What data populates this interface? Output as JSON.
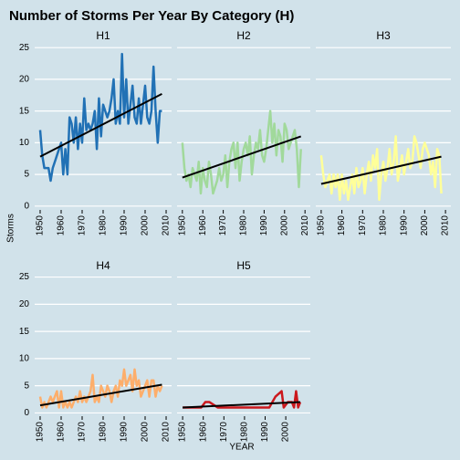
{
  "chart_data": {
    "type": "line",
    "title": "Number of Storms Per Year By Category (H)",
    "x_label": "YEAR",
    "y_label": "Storms",
    "ylim": [
      -0.6,
      25.6
    ],
    "yticks": [
      0,
      5,
      10,
      15,
      20,
      25
    ],
    "grid": true,
    "x": [
      1950,
      1951,
      1952,
      1953,
      1954,
      1955,
      1956,
      1957,
      1958,
      1959,
      1960,
      1961,
      1962,
      1963,
      1964,
      1965,
      1966,
      1967,
      1968,
      1969,
      1970,
      1971,
      1972,
      1973,
      1974,
      1975,
      1976,
      1977,
      1978,
      1979,
      1980,
      1981,
      1982,
      1983,
      1984,
      1985,
      1986,
      1987,
      1988,
      1989,
      1990,
      1991,
      1992,
      1993,
      1994,
      1995,
      1996,
      1997,
      1998,
      1999,
      2000,
      2001,
      2002,
      2003,
      2004,
      2005,
      2006,
      2007,
      2008
    ],
    "series": [
      {
        "name": "H1",
        "color": "#2171b5",
        "xlim": [
          1947.4,
          2012.6
        ],
        "xticks": [
          1950,
          1960,
          1970,
          1980,
          1990,
          2000,
          2010
        ],
        "trend": [
          7.8,
          17.7
        ],
        "values": [
          12,
          8,
          6,
          6,
          6,
          4,
          6,
          7,
          8,
          9,
          10,
          5,
          9,
          5,
          14,
          13,
          10,
          14,
          9,
          13,
          10,
          17,
          12,
          13,
          12,
          13,
          15,
          9,
          17,
          11,
          16,
          15,
          14,
          15,
          17,
          20,
          13,
          15,
          13,
          24,
          14,
          20,
          13,
          16,
          19,
          14,
          13,
          17,
          13,
          16,
          19,
          14,
          13,
          15,
          22,
          15,
          10,
          15,
          15
        ]
      },
      {
        "name": "H2",
        "color": "#a1d99b",
        "xlim": [
          1947.4,
          2012.6
        ],
        "xticks": [
          1950,
          1960,
          1970,
          1980,
          1990,
          2000,
          2010
        ],
        "trend": [
          4.5,
          11
        ],
        "values": [
          10,
          6,
          4,
          5,
          3,
          6,
          5,
          4,
          7,
          2,
          6,
          4,
          3,
          7,
          5,
          2,
          3,
          4,
          6,
          4,
          5,
          8,
          3,
          7,
          9,
          10,
          6,
          10,
          4,
          7,
          9,
          10,
          8,
          11,
          5,
          8,
          10,
          9,
          12,
          8,
          7,
          9,
          12,
          15,
          10,
          13,
          8,
          12,
          11,
          7,
          13,
          12,
          9,
          10,
          11,
          12,
          9,
          3,
          9
        ]
      },
      {
        "name": "H3",
        "color": "#ffff99",
        "xlim": [
          1947.4,
          2012.6
        ],
        "xticks": [
          1950,
          1960,
          1970,
          1980,
          1990,
          2000,
          2010
        ],
        "trend": [
          3.5,
          7.8
        ],
        "values": [
          8,
          5,
          3,
          4,
          5,
          2,
          5,
          3,
          5,
          1,
          5,
          2,
          4,
          1,
          3,
          5,
          2,
          6,
          3,
          4,
          6,
          2,
          5,
          7,
          4,
          8,
          6,
          9,
          1,
          5,
          7,
          4,
          6,
          9,
          5,
          7,
          11,
          4,
          6,
          8,
          5,
          7,
          9,
          6,
          7,
          11,
          10,
          8,
          6,
          9,
          10,
          9,
          8,
          5,
          7,
          3,
          9,
          8,
          2
        ]
      },
      {
        "name": "H4",
        "color": "#fdae6b",
        "xlim": [
          1947.4,
          2012.6
        ],
        "xticks": [
          1950,
          1960,
          1970,
          1980,
          1990,
          2000,
          2010
        ],
        "trend": [
          1.4,
          5.2
        ],
        "values": [
          3,
          1,
          2,
          1,
          2,
          3,
          2,
          3,
          4,
          1,
          4,
          1,
          2,
          1,
          2,
          1,
          2,
          3,
          2,
          4,
          2,
          3,
          2,
          3,
          4,
          7,
          2,
          3,
          2,
          5,
          4,
          3,
          5,
          4,
          2,
          4,
          5,
          3,
          6,
          5,
          8,
          5,
          6,
          7,
          4,
          8,
          5,
          6,
          3,
          4,
          5,
          6,
          3,
          6,
          6,
          3,
          5,
          4,
          5
        ]
      },
      {
        "name": "H5",
        "color": "#cb181d",
        "xlim": [
          1947.3,
          2011.9
        ],
        "xticks": [
          1950,
          1960,
          1970,
          1980,
          1990,
          2000
        ],
        "trend": [
          1,
          2
        ],
        "x": [
          1950,
          1955,
          1959,
          1961,
          1963,
          1967,
          1969,
          1971,
          1977,
          1979,
          1980,
          1988,
          1989,
          1992,
          1995,
          1998,
          1999,
          2001,
          2003,
          2004,
          2005,
          2006,
          2007
        ],
        "values": [
          1,
          1,
          1,
          2,
          2,
          1,
          1,
          1,
          1,
          1,
          1,
          1,
          1,
          1,
          3,
          4,
          1,
          2,
          2,
          1,
          4,
          1,
          2
        ]
      }
    ]
  }
}
